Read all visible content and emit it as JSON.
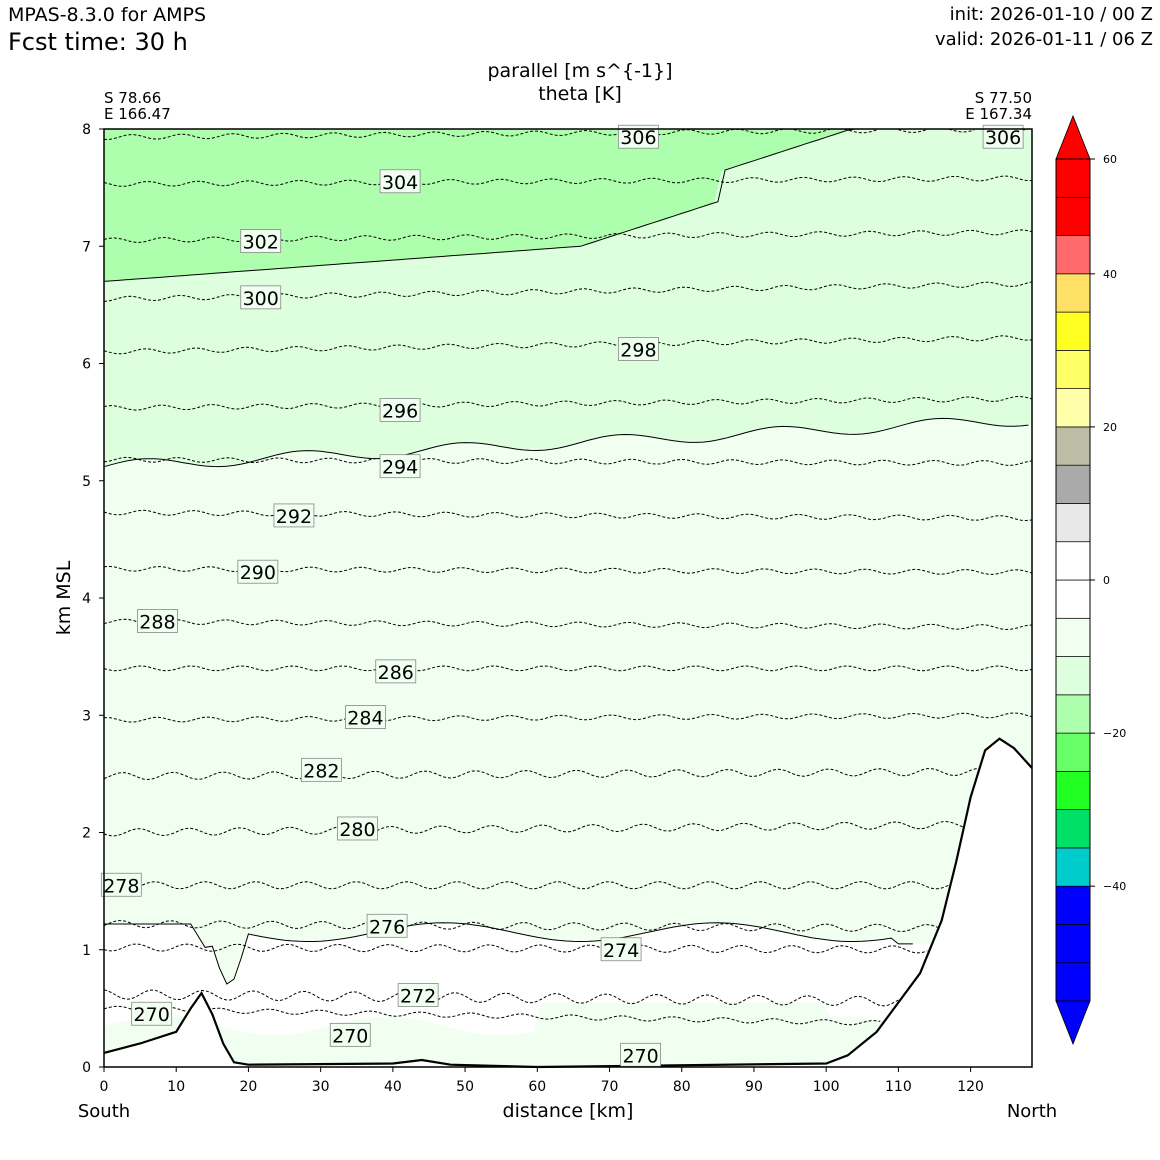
{
  "header": {
    "model": "MPAS-8.3.0 for AMPS",
    "fcst_time": "Fcst time:   30 h",
    "init": "init: 2026-01-10 / 00 Z",
    "valid": "valid: 2026-01-11 / 06 Z"
  },
  "endpoints": {
    "start_lat": "S 78.66",
    "start_lon": "E 166.47",
    "end_lat": "S 77.50",
    "end_lon": "E 167.34",
    "left_label": "South",
    "right_label": "North"
  },
  "chart_data": {
    "type": "cross-section",
    "title_line1": "parallel [m s^{-1}]",
    "title_line2": "theta [K]",
    "xlabel": "distance [km]",
    "ylabel": "km MSL",
    "xlim": [
      0,
      128.5
    ],
    "ylim": [
      0,
      8
    ],
    "x_ticks": [
      "0",
      "10",
      "20",
      "30",
      "40",
      "50",
      "60",
      "70",
      "80",
      "90",
      "100",
      "110",
      "120"
    ],
    "y_ticks": [
      "0",
      "1",
      "2",
      "3",
      "4",
      "5",
      "6",
      "7",
      "8"
    ],
    "terrain": [
      [
        0,
        0.12
      ],
      [
        5,
        0.2
      ],
      [
        10,
        0.3
      ],
      [
        12,
        0.5
      ],
      [
        13.5,
        0.63
      ],
      [
        15,
        0.45
      ],
      [
        16.5,
        0.2
      ],
      [
        18,
        0.04
      ],
      [
        20,
        0.02
      ],
      [
        40,
        0.03
      ],
      [
        44,
        0.06
      ],
      [
        48,
        0.02
      ],
      [
        60,
        0
      ],
      [
        100,
        0.03
      ],
      [
        103,
        0.1
      ],
      [
        107,
        0.3
      ],
      [
        110,
        0.55
      ],
      [
        113,
        0.8
      ],
      [
        116,
        1.25
      ],
      [
        118,
        1.75
      ],
      [
        120,
        2.3
      ],
      [
        122,
        2.7
      ],
      [
        124,
        2.8
      ],
      [
        126,
        2.72
      ],
      [
        128.5,
        2.55
      ]
    ],
    "fill_levels": [
      {
        "range": "< -20",
        "color": "#adffad"
      },
      {
        "range": "-20 to -10",
        "color": "#ddffdd"
      },
      {
        "range": "-10 to 0",
        "color": "#f0fff0"
      },
      {
        "range": "0 to 10",
        "color": "#ffffff"
      }
    ],
    "isotherms": [
      {
        "theta": 270,
        "y0": 0.5,
        "y1": 0.35,
        "amp": 0.02
      },
      {
        "theta": 272,
        "y0": 0.62,
        "y1": 0.55,
        "amp": 0.04
      },
      {
        "theta": 274,
        "y0": 1.02,
        "y1": 1.0,
        "amp": 0.03
      },
      {
        "theta": 276,
        "y0": 1.22,
        "y1": 1.18,
        "amp": 0.03
      },
      {
        "theta": 278,
        "y0": 1.55,
        "y1": 1.55,
        "amp": 0.03
      },
      {
        "theta": 280,
        "y0": 2.0,
        "y1": 2.07,
        "amp": 0.03
      },
      {
        "theta": 282,
        "y0": 2.48,
        "y1": 2.52,
        "amp": 0.03
      },
      {
        "theta": 284,
        "y0": 2.96,
        "y1": 3.0,
        "amp": 0.02
      },
      {
        "theta": 286,
        "y0": 3.4,
        "y1": 3.4,
        "amp": 0.02
      },
      {
        "theta": 288,
        "y0": 3.8,
        "y1": 3.75,
        "amp": 0.02
      },
      {
        "theta": 290,
        "y0": 4.25,
        "y1": 4.22,
        "amp": 0.02
      },
      {
        "theta": 292,
        "y0": 4.73,
        "y1": 4.68,
        "amp": 0.02
      },
      {
        "theta": 294,
        "y0": 5.18,
        "y1": 5.15,
        "amp": 0.02
      },
      {
        "theta": 296,
        "y0": 5.62,
        "y1": 5.7,
        "amp": 0.02
      },
      {
        "theta": 298,
        "y0": 6.1,
        "y1": 6.22,
        "amp": 0.02
      },
      {
        "theta": 300,
        "y0": 6.55,
        "y1": 6.68,
        "amp": 0.02
      },
      {
        "theta": 302,
        "y0": 7.05,
        "y1": 7.12,
        "amp": 0.02
      },
      {
        "theta": 304,
        "y0": 7.53,
        "y1": 7.58,
        "amp": 0.02
      },
      {
        "theta": 306,
        "y0": 7.93,
        "y1": 8.0,
        "amp": 0.02
      }
    ],
    "contour_labels": [
      {
        "text": "306",
        "x": 74,
        "y": 7.93
      },
      {
        "text": "306",
        "x": 124.5,
        "y": 7.93
      },
      {
        "text": "304",
        "x": 41,
        "y": 7.55
      },
      {
        "text": "302",
        "x": 21.7,
        "y": 7.04
      },
      {
        "text": "300",
        "x": 21.7,
        "y": 6.56
      },
      {
        "text": "298",
        "x": 74,
        "y": 6.12
      },
      {
        "text": "296",
        "x": 41,
        "y": 5.6
      },
      {
        "text": "294",
        "x": 41,
        "y": 5.12
      },
      {
        "text": "292",
        "x": 26.3,
        "y": 4.7
      },
      {
        "text": "290",
        "x": 21.3,
        "y": 4.22
      },
      {
        "text": "288",
        "x": 7.4,
        "y": 3.8
      },
      {
        "text": "286",
        "x": 40.4,
        "y": 3.37
      },
      {
        "text": "284",
        "x": 36.2,
        "y": 2.98
      },
      {
        "text": "282",
        "x": 30.1,
        "y": 2.53
      },
      {
        "text": "280",
        "x": 35.1,
        "y": 2.03
      },
      {
        "text": "278",
        "x": 2.4,
        "y": 1.55
      },
      {
        "text": "276",
        "x": 39.2,
        "y": 1.2
      },
      {
        "text": "274",
        "x": 71.6,
        "y": 1.0
      },
      {
        "text": "272",
        "x": 43.5,
        "y": 0.61
      },
      {
        "text": "270",
        "x": 6.6,
        "y": 0.45
      },
      {
        "text": "270",
        "x": 34.1,
        "y": 0.27
      },
      {
        "text": "270",
        "x": 74.3,
        "y": 0.1
      }
    ],
    "colorbar": {
      "colors": [
        "#0000ff",
        "#0000ff",
        "#0000ff",
        "#00cccc",
        "#00e066",
        "#22ff22",
        "#66ff66",
        "#adffad",
        "#ddffdd",
        "#f0fff0",
        "#ffffff",
        "#ffffff",
        "#e8e8e8",
        "#aaaaaa",
        "#bdbda5",
        "#ffffaa",
        "#ffff66",
        "#ffff22",
        "#ffe066",
        "#ff6b6b",
        "#ff0000",
        "#ff0000"
      ],
      "min": -55,
      "max": 55,
      "ticks": [
        {
          "value": -40,
          "label": "−40"
        },
        {
          "value": -20,
          "label": "−20"
        },
        {
          "value": 0,
          "label": "0"
        },
        {
          "value": 20,
          "label": "20"
        },
        {
          "value": 40,
          "label": "40"
        },
        {
          "value": 60,
          "label": "60"
        }
      ]
    }
  }
}
